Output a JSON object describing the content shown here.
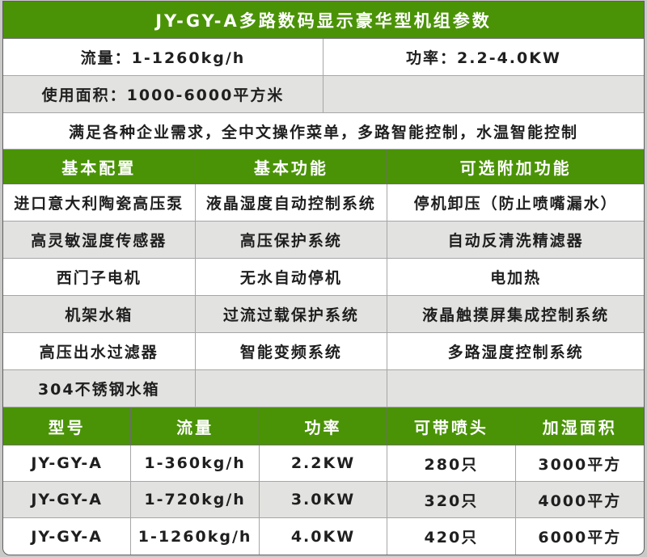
{
  "title": "JY-GY-A多路数码显示豪华型机组参数",
  "specs": {
    "flow": "流量：1-1260kg/h",
    "power": "功率：2.2-4.0KW",
    "area": "使用面积：1000-6000平方米",
    "area_right": "",
    "description": "满足各种企业需求，全中文操作菜单，多路智能控制，水温智能控制"
  },
  "features": {
    "headers": [
      "基本配置",
      "基本功能",
      "可选附加功能"
    ],
    "rows": [
      [
        "进口意大利陶瓷高压泵",
        "液晶湿度自动控制系统",
        "停机卸压（防止喷嘴漏水）"
      ],
      [
        "高灵敏湿度传感器",
        "高压保护系统",
        "自动反清洗精滤器"
      ],
      [
        "西门子电机",
        "无水自动停机",
        "电加热"
      ],
      [
        "机架水箱",
        "过流过载保护系统",
        "液晶触摸屏集成控制系统"
      ],
      [
        "高压出水过滤器",
        "智能变频系统",
        "多路湿度控制系统"
      ],
      [
        "304不锈钢水箱",
        "",
        ""
      ]
    ]
  },
  "models": {
    "headers": [
      "型号",
      "流量",
      "功率",
      "可带喷头",
      "加湿面积"
    ],
    "rows": [
      [
        "JY-GY-A",
        "1-360kg/h",
        "2.2KW",
        "280只",
        "3000平方"
      ],
      [
        "JY-GY-A",
        "1-720kg/h",
        "3.0KW",
        "320只",
        "4000平方"
      ],
      [
        "JY-GY-A",
        "1-1260kg/h",
        "4.0KW",
        "420只",
        "6000平方"
      ]
    ]
  },
  "colors": {
    "header_green": "#4a9306",
    "header_text": "#ffffff",
    "row_gray": "#e2e2e0",
    "body_text": "#1f1f1f",
    "grid_line": "#a6a6a6",
    "green_line": "#6d6d6d",
    "frame_line": "#5f5f5f",
    "frame_bg": "#c9c9c7"
  }
}
